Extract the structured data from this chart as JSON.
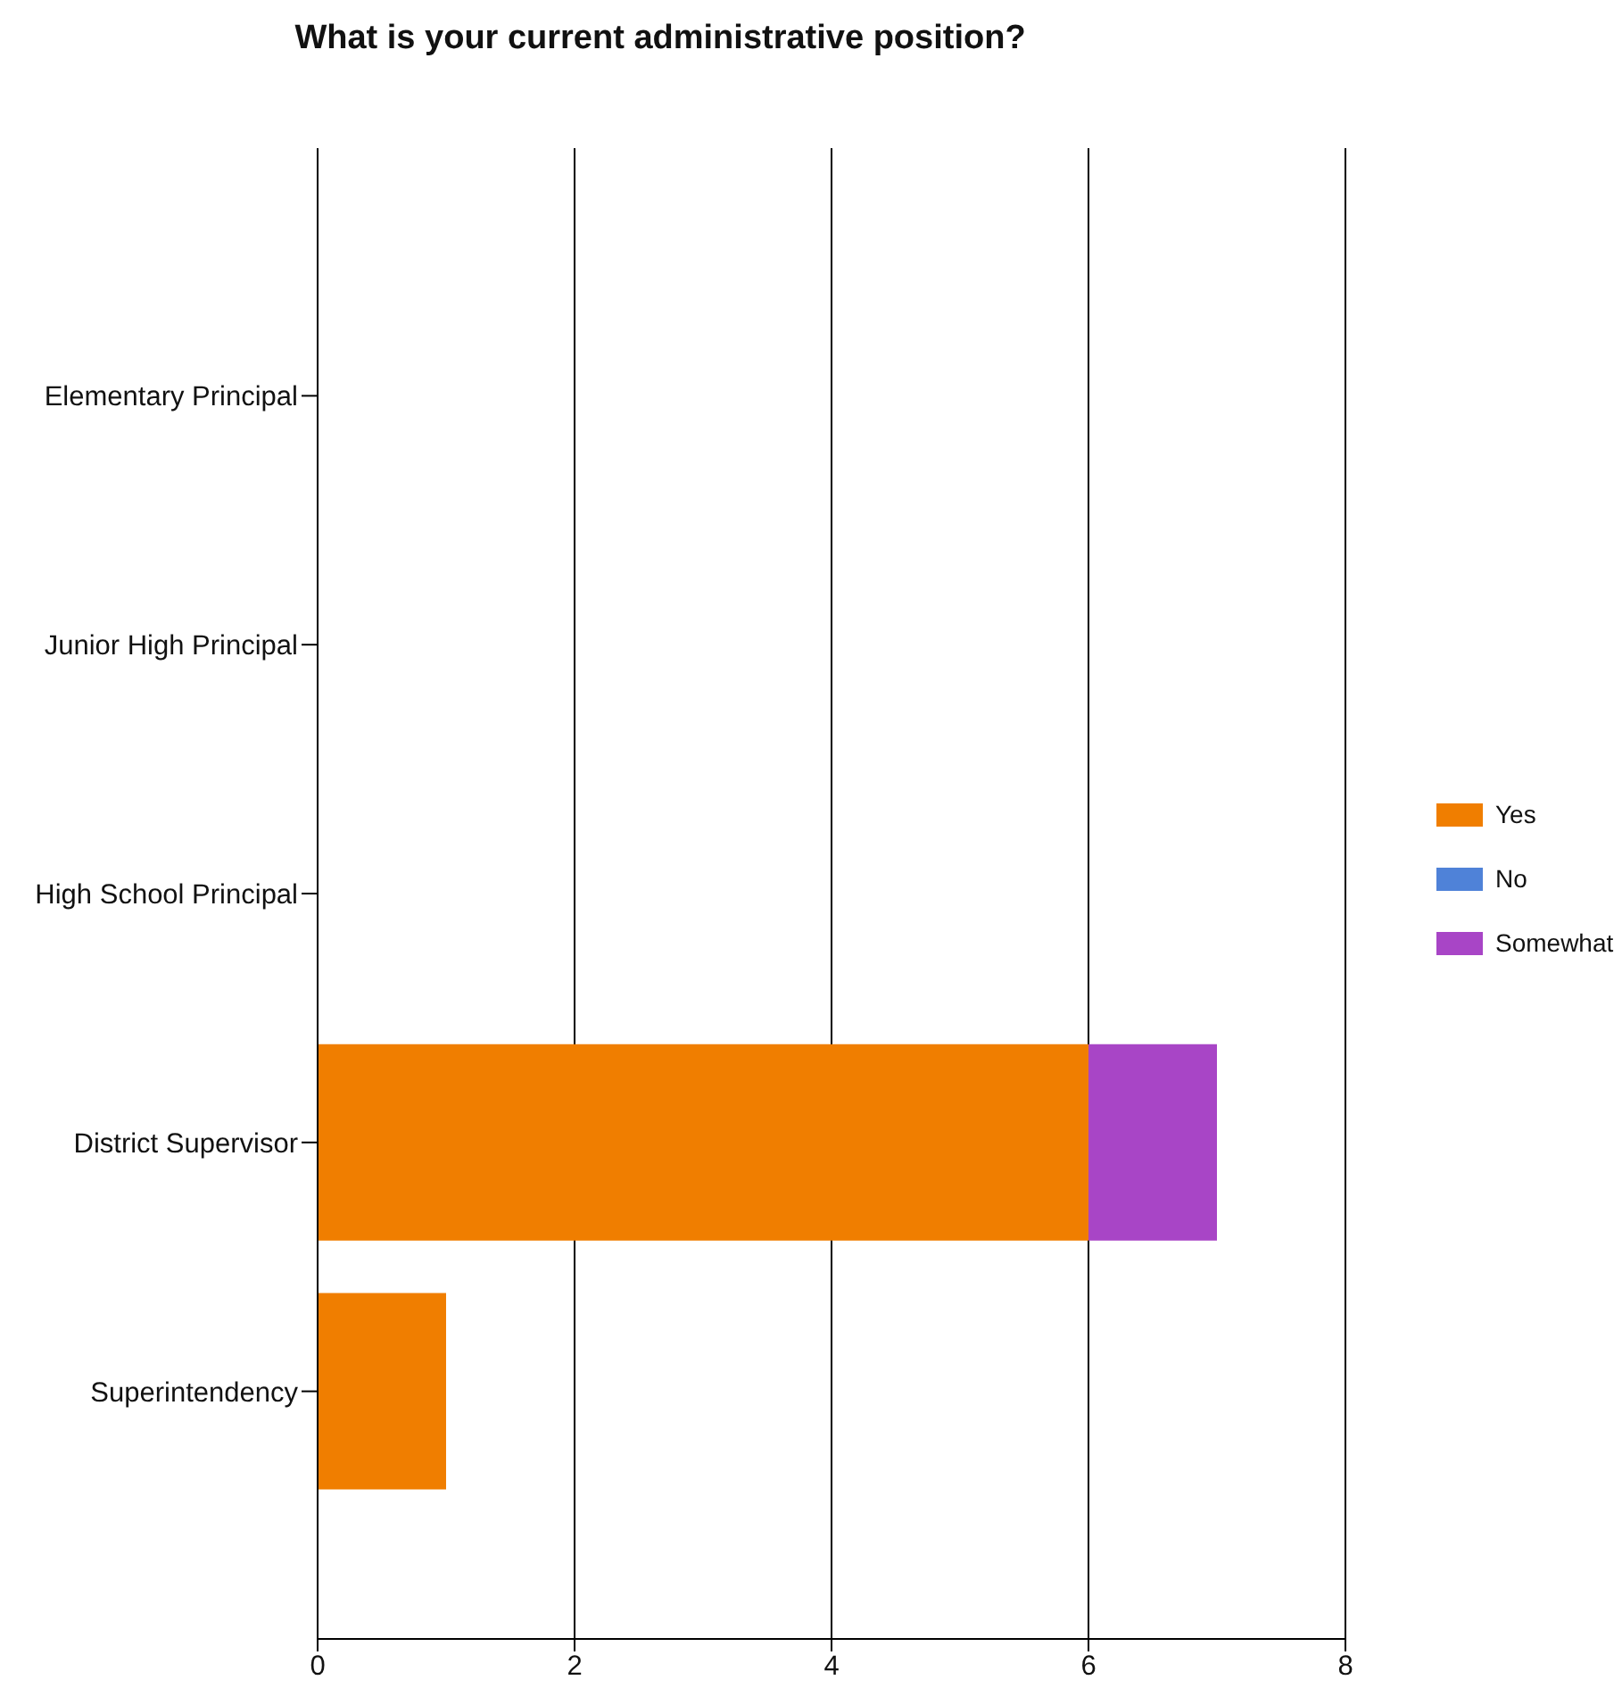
{
  "chart_data": {
    "type": "bar",
    "title": "What is your current administrative position?",
    "orientation": "horizontal",
    "stacked": true,
    "categories": [
      "Elementary Principal",
      "Junior High Principal",
      "High School Principal",
      "District Supervisor",
      "Superintendency"
    ],
    "series": [
      {
        "name": "Yes",
        "color": "#f07e00",
        "values": [
          0,
          0,
          0,
          6,
          1
        ]
      },
      {
        "name": "No",
        "color": "#4f82d8",
        "values": [
          0,
          0,
          0,
          0,
          0
        ]
      },
      {
        "name": "Somewhat",
        "color": "#a845c6",
        "values": [
          0,
          0,
          0,
          1,
          0
        ]
      }
    ],
    "xlim": [
      0,
      8
    ],
    "xticks": [
      0,
      2,
      4,
      6,
      8
    ],
    "grid": "x",
    "legend": "right"
  }
}
